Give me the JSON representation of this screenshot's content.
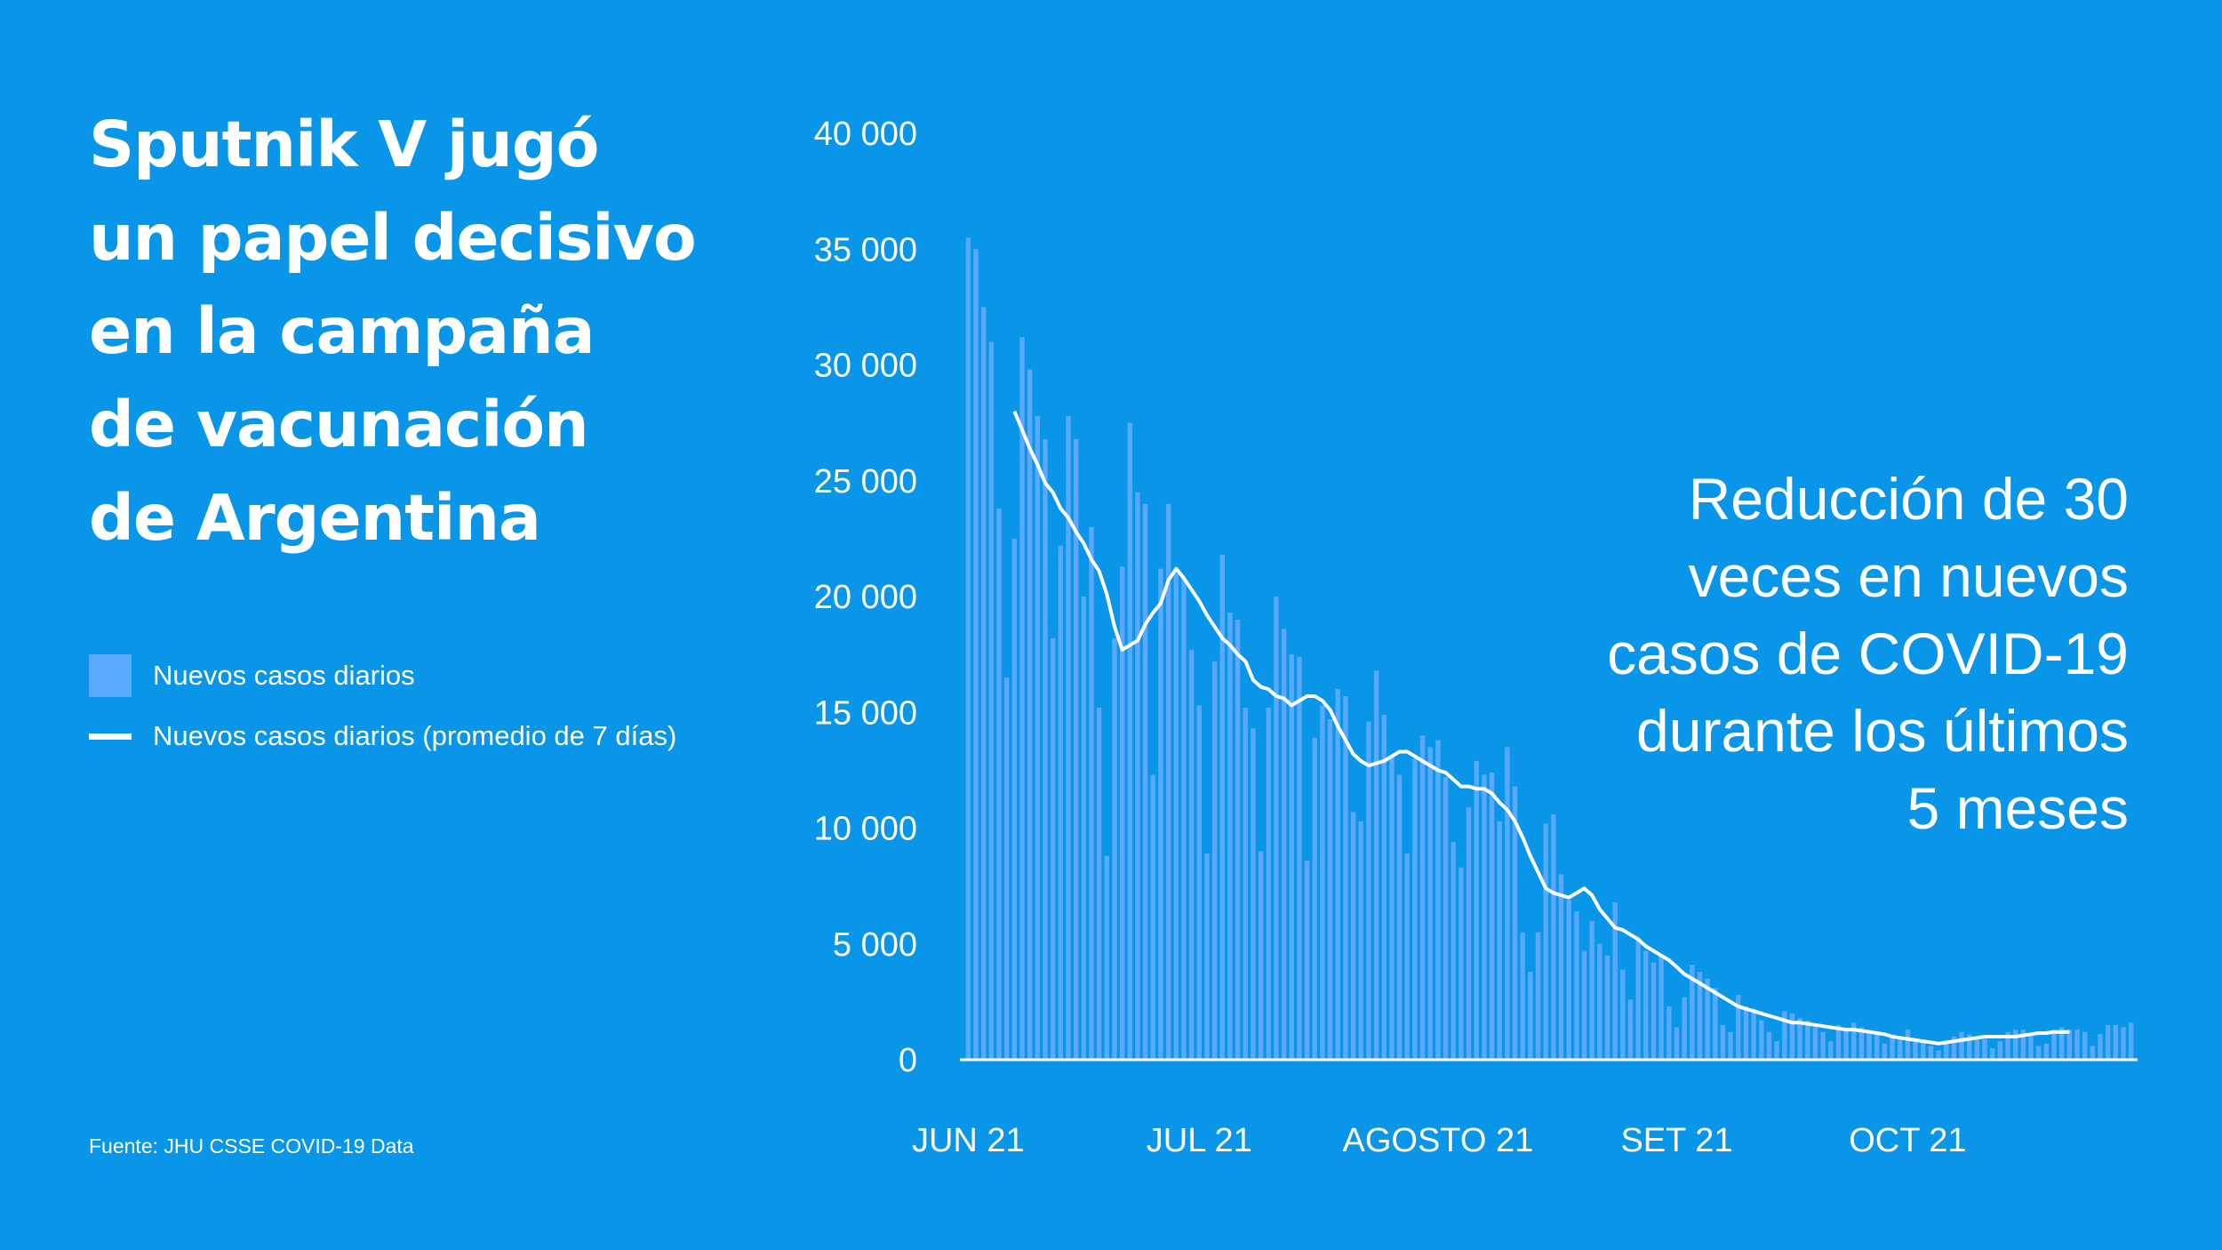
{
  "title_lines": [
    "Sputnik V jugó",
    "un papel decisivo",
    "en la campaña",
    "de vacunación",
    "de Argentina"
  ],
  "legend": {
    "bars_label": "Nuevos casos diarios",
    "line_label": "Nuevos casos diarios (promedio de 7 días)"
  },
  "source": "Fuente: JHU CSSE COVID-19 Data",
  "annotation_lines": [
    "Reducción de 30",
    "veces en nuevos",
    "casos de COVID-19",
    "durante los últimos",
    "5 meses"
  ],
  "colors": {
    "background": "#0a96e8",
    "bars": "#5aa8ff",
    "line": "#ffffff",
    "text": "#ffffff"
  },
  "chart_data": {
    "type": "bar",
    "ylim": [
      0,
      40000
    ],
    "y_ticks": [
      {
        "value": 0,
        "label": "0"
      },
      {
        "value": 5000,
        "label": "5 000"
      },
      {
        "value": 10000,
        "label": "10 000"
      },
      {
        "value": 15000,
        "label": "15 000"
      },
      {
        "value": 20000,
        "label": "20 000"
      },
      {
        "value": 25000,
        "label": "25 000"
      },
      {
        "value": 30000,
        "label": "30 000"
      },
      {
        "value": 35000,
        "label": "35 000"
      },
      {
        "value": 40000,
        "label": "40 000"
      }
    ],
    "x_ticks": [
      {
        "index": 0,
        "label": "JUN 21"
      },
      {
        "index": 30,
        "label": "JUL 21"
      },
      {
        "index": 61,
        "label": "AGOSTO 21"
      },
      {
        "index": 92,
        "label": "SET 21"
      },
      {
        "index": 122,
        "label": "OCT 21"
      }
    ],
    "series": [
      {
        "name": "Nuevos casos diarios",
        "type": "bar",
        "values": [
          35500,
          35000,
          32500,
          31000,
          23800,
          16500,
          22500,
          31200,
          29800,
          27800,
          26800,
          18200,
          22200,
          27800,
          26800,
          20000,
          23000,
          15200,
          8800,
          18200,
          21300,
          27500,
          24500,
          24000,
          12300,
          21200,
          24000,
          21000,
          20800,
          17700,
          15300,
          8900,
          17200,
          21800,
          19300,
          19000,
          15200,
          14300,
          9000,
          15200,
          20000,
          18600,
          17500,
          17400,
          8600,
          13900,
          15300,
          14700,
          16000,
          15700,
          10700,
          10300,
          14600,
          16800,
          14900,
          13100,
          12300,
          8900,
          13000,
          14000,
          13500,
          13800,
          12200,
          9400,
          8300,
          10900,
          12900,
          12300,
          12400,
          10300,
          13500,
          11800,
          5500,
          3800,
          5500,
          10200,
          10600,
          8000,
          6900,
          6400,
          4700,
          6000,
          5000,
          4500,
          6800,
          3900,
          2600,
          5200,
          4700,
          4200,
          4500,
          2300,
          1400,
          2700,
          4100,
          3800,
          3500,
          3100,
          1500,
          1200,
          2800,
          2300,
          2200,
          1700,
          1200,
          800,
          2100,
          2000,
          1800,
          1700,
          1400,
          1200,
          800,
          1500,
          1300,
          1600,
          1400,
          1300,
          1100,
          700,
          1100,
          1000,
          1300,
          900,
          800,
          600,
          400,
          700,
          1000,
          1200,
          1100,
          1000,
          900,
          500,
          800,
          1200,
          1300,
          1300,
          1100,
          600,
          700,
          1300,
          1400,
          1300,
          1300,
          1200,
          600,
          1100,
          1500,
          1500,
          1400,
          1600
        ]
      },
      {
        "name": "Nuevos casos diarios (promedio de 7 días)",
        "type": "line",
        "start_index": 6,
        "values": [
          28000,
          27200,
          26400,
          25700,
          24900,
          24500,
          23800,
          23400,
          22800,
          22300,
          21600,
          21100,
          20100,
          18700,
          17700,
          17900,
          18100,
          18800,
          19300,
          19700,
          20700,
          21200,
          20800,
          20300,
          19800,
          19200,
          18700,
          18200,
          17900,
          17500,
          17200,
          16400,
          16100,
          16000,
          15700,
          15600,
          15300,
          15500,
          15700,
          15700,
          15500,
          15100,
          14400,
          13800,
          13200,
          12900,
          12700,
          12800,
          12900,
          13100,
          13300,
          13300,
          13100,
          12900,
          12700,
          12500,
          12400,
          12100,
          11800,
          11800,
          11700,
          11700,
          11500,
          11100,
          10800,
          10300,
          9600,
          8800,
          8100,
          7400,
          7200,
          7100,
          7000,
          7200,
          7400,
          7100,
          6500,
          6100,
          5700,
          5600,
          5400,
          5200,
          4900,
          4700,
          4500,
          4300,
          4000,
          3700,
          3500,
          3300,
          3100,
          2900,
          2700,
          2500,
          2300,
          2200,
          2100,
          2000,
          1900,
          1800,
          1700,
          1600,
          1600,
          1550,
          1500,
          1450,
          1400,
          1350,
          1300,
          1300,
          1250,
          1200,
          1150,
          1100,
          1000,
          950,
          900,
          850,
          800,
          750,
          700,
          750,
          800,
          850,
          900,
          950,
          1000,
          1000,
          1000,
          1000,
          1000,
          1050,
          1100,
          1150,
          1150,
          1200,
          1200,
          1200
        ]
      }
    ]
  }
}
